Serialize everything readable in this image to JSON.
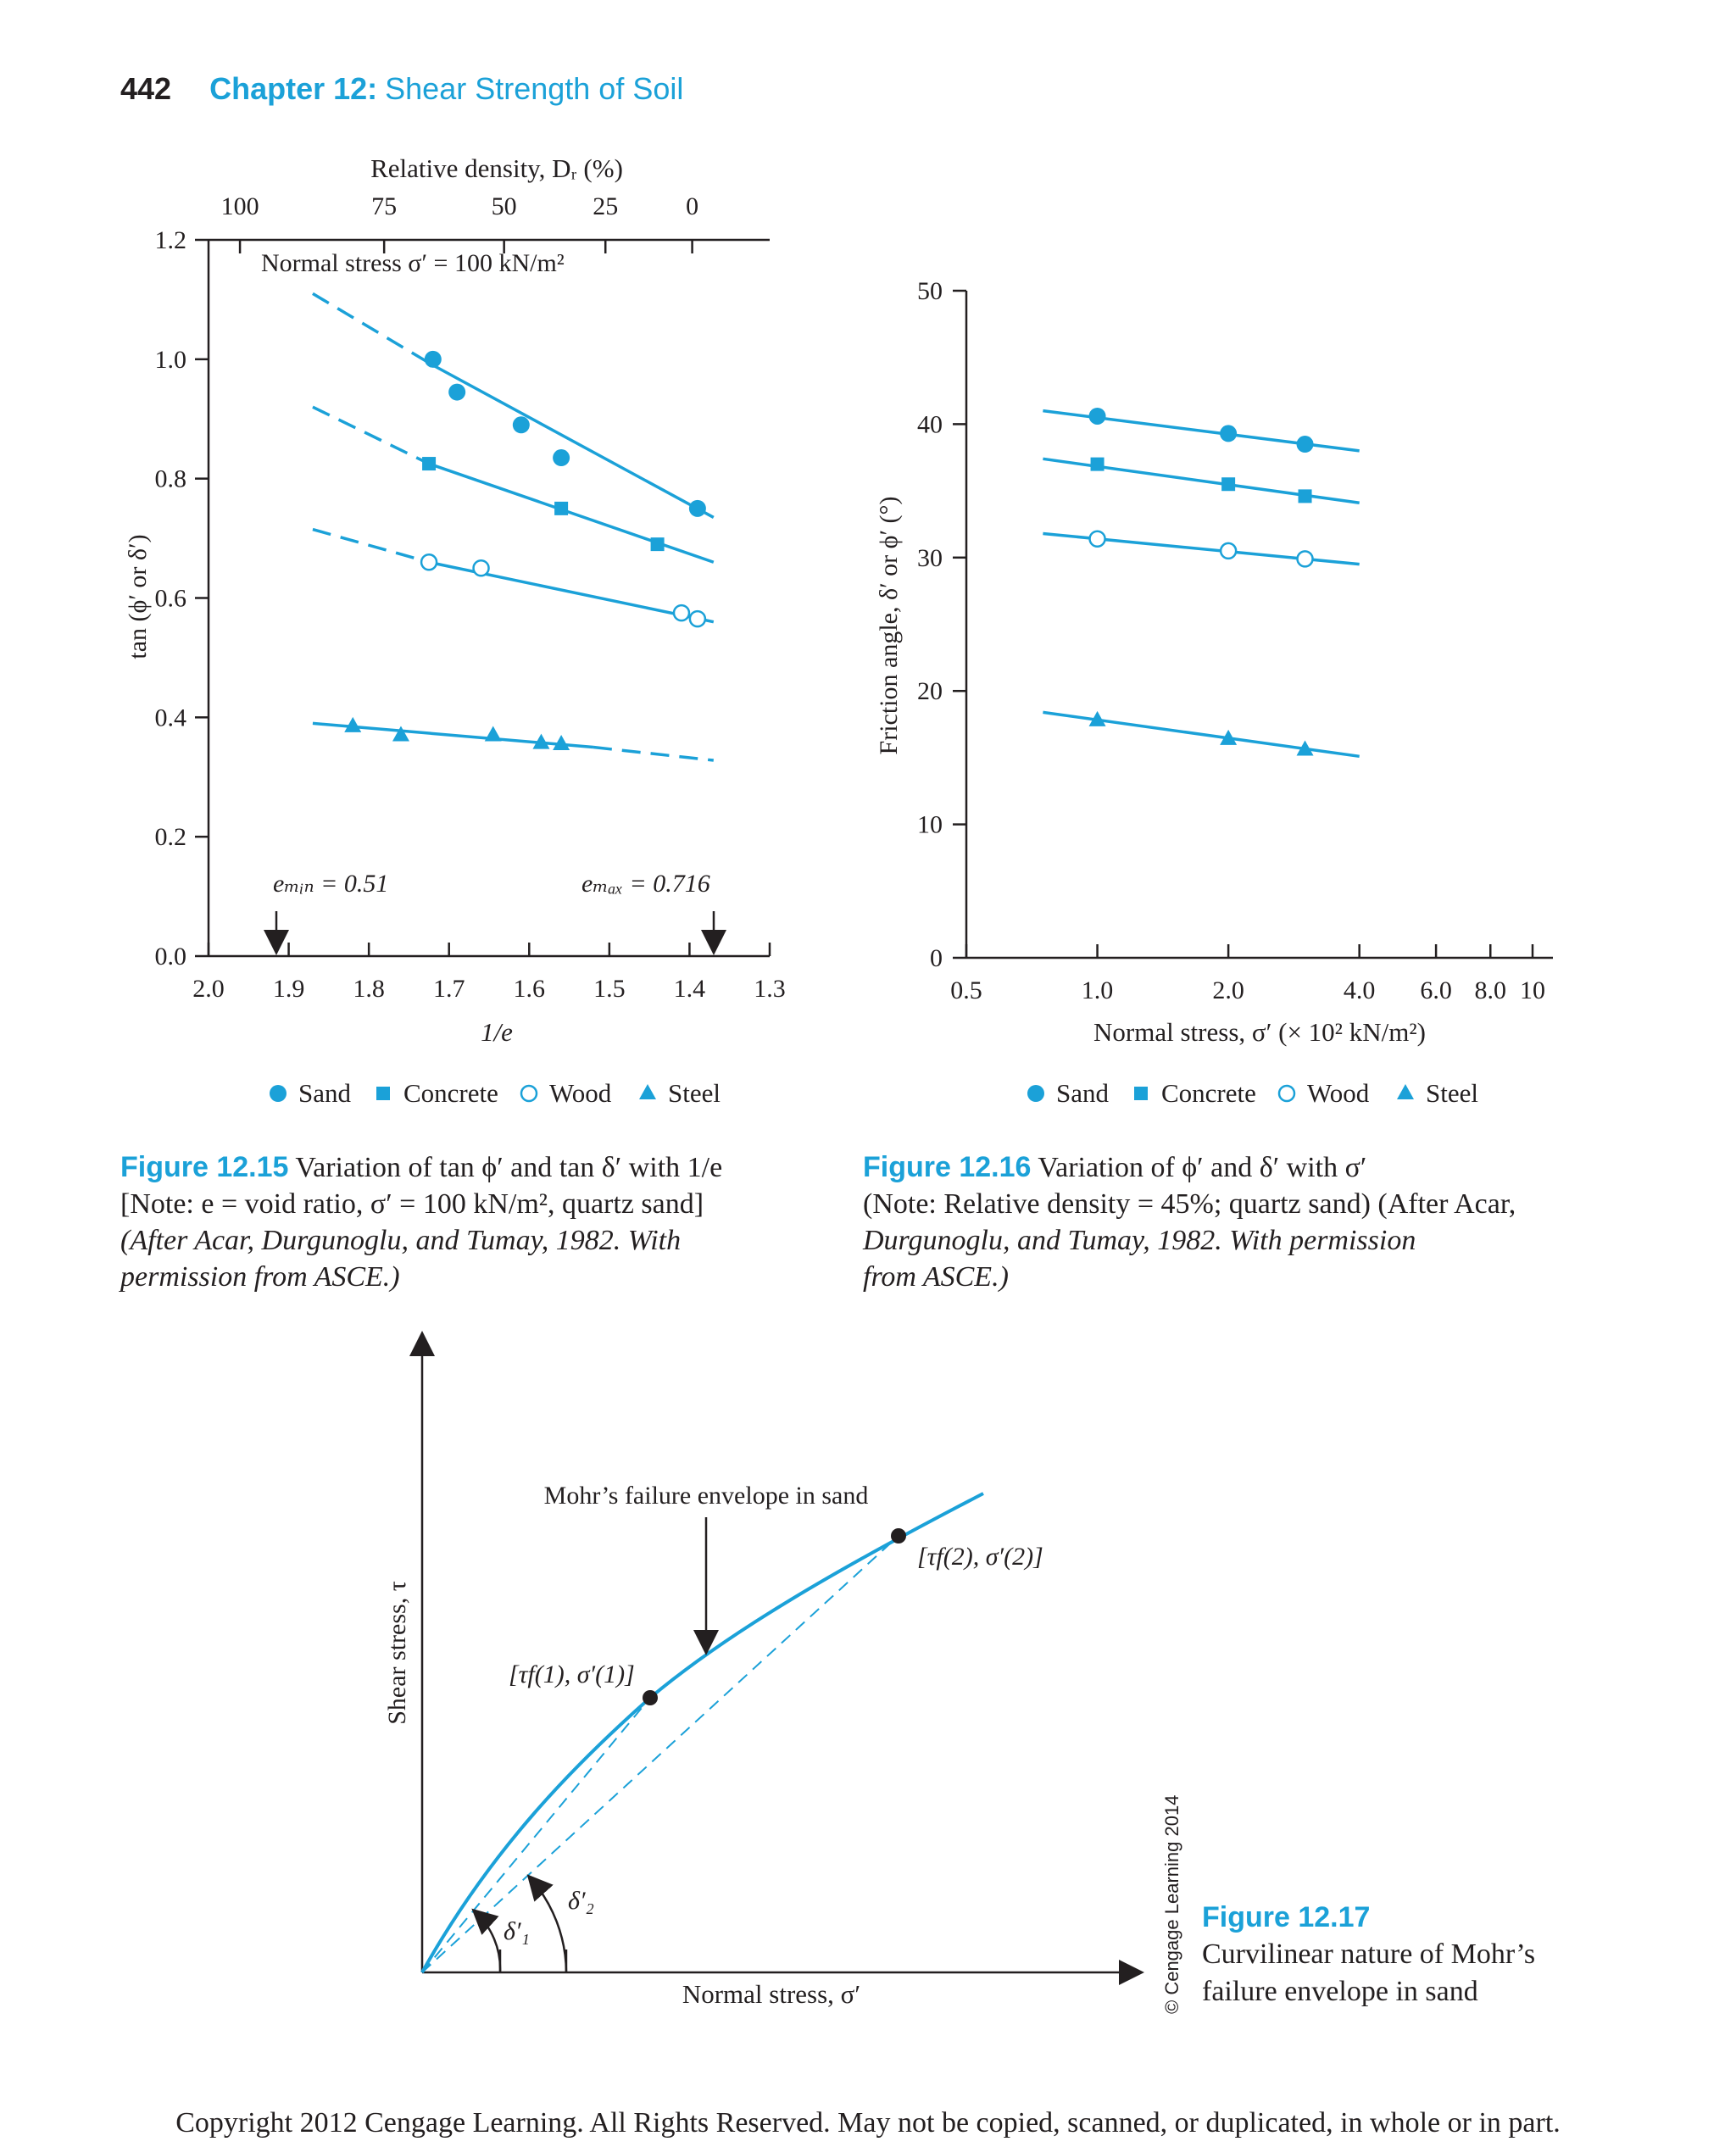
{
  "header": {
    "page_number": "442",
    "chapter_label": "Chapter 12:",
    "chapter_title": "Shear Strength of Soil"
  },
  "chart_data": [
    {
      "id": "figure-12-15",
      "type": "scatter",
      "annotation": "Normal stress σ′ = 100 kN/m²",
      "xlabel": "1/e",
      "ylabel": "tan (ϕ′ or δ′)",
      "top_axis_label": "Relative density, Dᵣ (%)",
      "x_ticks": [
        "2.0",
        "1.9",
        "1.8",
        "1.7",
        "1.6",
        "1.5",
        "1.4",
        "1.3"
      ],
      "y_ticks": [
        "0.0",
        "0.2",
        "0.4",
        "0.6",
        "0.8",
        "1.0",
        "1.2"
      ],
      "top_ticks": [
        "100",
        "75",
        "50",
        "25",
        "0"
      ],
      "xlim": [
        2.0,
        1.3
      ],
      "ylim": [
        0.0,
        1.2
      ],
      "emin_label": "eₘᵢₙ = 0.51",
      "emax_label": "eₘₐₓ = 0.716",
      "legend_position": "bottom",
      "series": [
        {
          "name": "Sand",
          "marker": "circle-filled",
          "points": [
            [
              1.72,
              1.0
            ],
            [
              1.69,
              0.945
            ],
            [
              1.61,
              0.89
            ],
            [
              1.56,
              0.835
            ],
            [
              1.39,
              0.75
            ]
          ],
          "line": [
            [
              1.72,
              0.99
            ],
            [
              1.37,
              0.735
            ]
          ],
          "dashed": [
            [
              1.87,
              1.11
            ],
            [
              1.72,
              0.99
            ]
          ]
        },
        {
          "name": "Concrete",
          "marker": "square-filled",
          "points": [
            [
              1.725,
              0.825
            ],
            [
              1.56,
              0.75
            ],
            [
              1.44,
              0.69
            ]
          ],
          "line": [
            [
              1.725,
              0.825
            ],
            [
              1.37,
              0.66
            ]
          ],
          "dashed": [
            [
              1.87,
              0.92
            ],
            [
              1.725,
              0.825
            ]
          ]
        },
        {
          "name": "Wood",
          "marker": "circle-open",
          "points": [
            [
              1.725,
              0.66
            ],
            [
              1.66,
              0.65
            ],
            [
              1.41,
              0.575
            ],
            [
              1.39,
              0.565
            ]
          ],
          "line": [
            [
              1.725,
              0.66
            ],
            [
              1.37,
              0.56
            ]
          ],
          "dashed": [
            [
              1.87,
              0.715
            ],
            [
              1.725,
              0.66
            ]
          ]
        },
        {
          "name": "Steel",
          "marker": "triangle-filled",
          "points": [
            [
              1.82,
              0.385
            ],
            [
              1.76,
              0.37
            ],
            [
              1.645,
              0.37
            ],
            [
              1.585,
              0.357
            ],
            [
              1.56,
              0.355
            ]
          ],
          "line": [
            [
              1.87,
              0.39
            ],
            [
              1.52,
              0.35
            ]
          ],
          "dashed": [
            [
              1.52,
              0.35
            ],
            [
              1.37,
              0.328
            ]
          ]
        }
      ]
    },
    {
      "id": "figure-12-16",
      "type": "scatter",
      "xlabel": "Normal stress, σ′ (× 10² kN/m²)",
      "ylabel": "Friction angle, δ′ or ϕ′ (°)",
      "x_scale": "log",
      "x_ticks": [
        "0.5",
        "1.0",
        "2.0",
        "4.0",
        "6.0",
        "8.0",
        "10"
      ],
      "y_ticks": [
        "0",
        "10",
        "20",
        "30",
        "40",
        "50"
      ],
      "xlim": [
        0.5,
        10
      ],
      "ylim": [
        0,
        50
      ],
      "legend_position": "bottom",
      "series": [
        {
          "name": "Sand",
          "marker": "circle-filled",
          "points": [
            [
              1.0,
              40.6
            ],
            [
              2.0,
              39.3
            ],
            [
              3.0,
              38.5
            ]
          ],
          "line": [
            [
              0.75,
              41.0
            ],
            [
              4.0,
              38.0
            ]
          ]
        },
        {
          "name": "Concrete",
          "marker": "square-filled",
          "points": [
            [
              1.0,
              37.0
            ],
            [
              2.0,
              35.5
            ],
            [
              3.0,
              34.6
            ]
          ],
          "line": [
            [
              0.75,
              37.4
            ],
            [
              4.0,
              34.1
            ]
          ]
        },
        {
          "name": "Wood",
          "marker": "circle-open",
          "points": [
            [
              1.0,
              31.4
            ],
            [
              2.0,
              30.5
            ],
            [
              3.0,
              29.9
            ]
          ],
          "line": [
            [
              0.75,
              31.8
            ],
            [
              4.0,
              29.5
            ]
          ]
        },
        {
          "name": "Steel",
          "marker": "triangle-filled",
          "points": [
            [
              1.0,
              17.8
            ],
            [
              2.0,
              16.4
            ],
            [
              3.0,
              15.6
            ]
          ],
          "line": [
            [
              0.75,
              18.4
            ],
            [
              4.0,
              15.1
            ]
          ]
        }
      ]
    }
  ],
  "legend": [
    "Sand",
    "Concrete",
    "Wood",
    "Steel"
  ],
  "fig15_caption": {
    "label": "Figure 12.15",
    "line1": "Variation of tan ϕ′ and tan δ′ with 1/e",
    "line2": "[Note: e = void ratio, σ′ = 100 kN/m², quartz sand]",
    "line3": "(After Acar, Durgunoglu, and Tumay, 1982. With",
    "line4": "permission from ASCE.)"
  },
  "fig16_caption": {
    "label": "Figure 12.16",
    "line1": "Variation of ϕ′ and δ′ with σ′",
    "line2": "(Note: Relative density = 45%; quartz sand) (After Acar,",
    "line3": "Durgunoglu, and Tumay, 1982. With permission",
    "line4": "from ASCE.)"
  },
  "fig17": {
    "ylabel": "Shear stress, τ",
    "xlabel": "Normal stress, σ′",
    "envelope_label": "Mohr’s failure envelope in sand",
    "point1_label": "[τf(1), σ′(1)]",
    "point2_label": "[τf(2), σ′(2)]",
    "delta1": "δ′₁",
    "delta2": "δ′₂",
    "caption_label": "Figure 12.17",
    "caption_line1": "Curvilinear nature of Mohr’s",
    "caption_line2": "failure envelope in sand",
    "watermark": "© Cengage Learning 2014"
  },
  "colors": {
    "accent": "#1ba1d8",
    "text": "#231f20"
  },
  "copyright": "Copyright 2012 Cengage Learning. All Rights Reserved. May not be copied, scanned, or duplicated, in whole or in part."
}
